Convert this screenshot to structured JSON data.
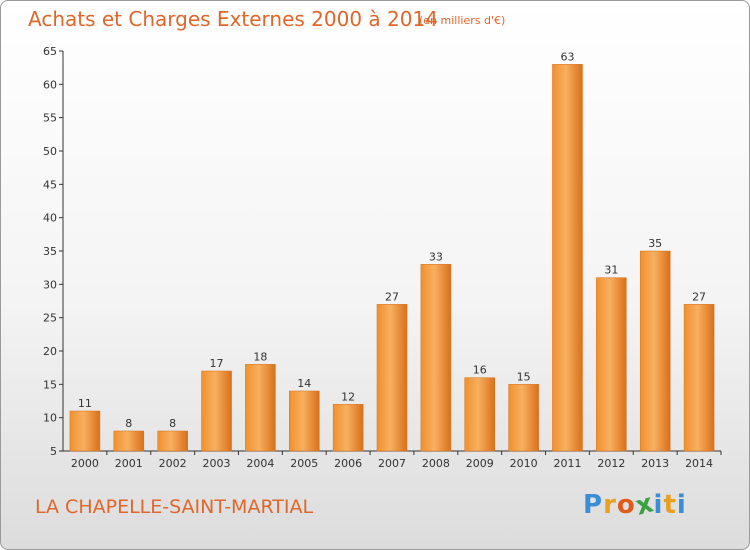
{
  "header": {
    "title": "Achats et Charges Externes 2000 à 2014",
    "subtitle": "(en milliers d'€)"
  },
  "footer": {
    "commune": "LA CHAPELLE-SAINT-MARTIAL",
    "logo_text": "Proxiti",
    "logo_letters": [
      "P",
      "r",
      "o",
      "x",
      "i",
      "t",
      "i"
    ],
    "logo_colors": [
      "#3a8dd8",
      "#e8a020",
      "#e05a1a",
      "#3aa040",
      "#3a8dd8",
      "#e8a020",
      "#3a8dd8"
    ]
  },
  "colors": {
    "bar": "#f0902e",
    "bar_light": "#f7b060",
    "bar_dark": "#d9701a",
    "accent": "#e0662a"
  },
  "chart_data": {
    "type": "bar",
    "categories": [
      "2000",
      "2001",
      "2002",
      "2003",
      "2004",
      "2005",
      "2006",
      "2007",
      "2008",
      "2009",
      "2010",
      "2011",
      "2012",
      "2013",
      "2014"
    ],
    "values": [
      11,
      8,
      8,
      17,
      18,
      14,
      12,
      27,
      33,
      16,
      15,
      63,
      31,
      35,
      27
    ],
    "ylim": [
      5,
      65
    ],
    "yticks": [
      5,
      10,
      15,
      20,
      25,
      30,
      35,
      40,
      45,
      50,
      55,
      60,
      65
    ],
    "grid": false,
    "data_labels": true
  }
}
